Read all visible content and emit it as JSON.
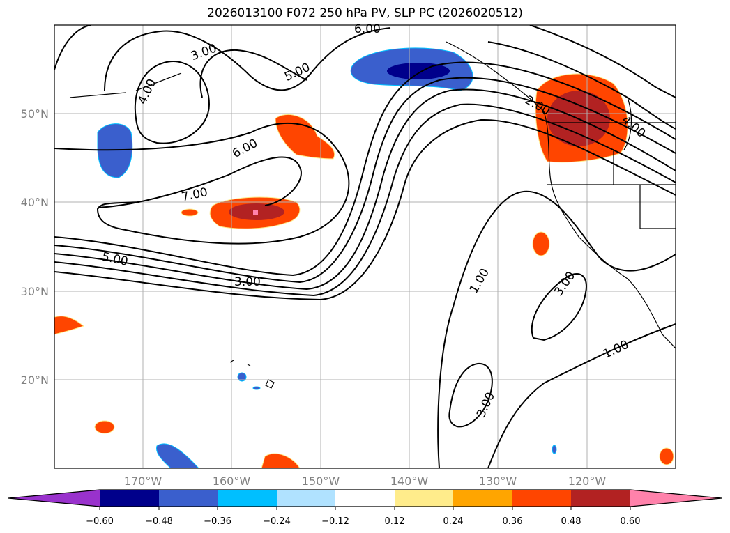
{
  "title": "2026013100 F072 250 hPa PV, SLP PC (2026020512)",
  "map": {
    "lon_labels": [
      "170°W",
      "160°W",
      "150°W",
      "140°W",
      "130°W",
      "120°W"
    ],
    "lat_labels": [
      "50°N",
      "40°N",
      "30°N",
      "20°N"
    ],
    "contour_labels": [
      "6.00",
      "3.00",
      "5.00",
      "4.00",
      "6.00",
      "7.00",
      "5.00",
      "3.00",
      "2.00",
      "4.00",
      "1.00",
      "3.00",
      "1.00",
      "3.00"
    ]
  },
  "colorbar": {
    "ticks": [
      "−0.60",
      "−0.48",
      "−0.36",
      "−0.24",
      "−0.12",
      "0.12",
      "0.24",
      "0.36",
      "0.48",
      "0.60"
    ],
    "colors": [
      "#9932CC",
      "#00008B",
      "#3A5FCD",
      "#00BFFF",
      "#B0E2FF",
      "#FFFFFF",
      "#FFEC8B",
      "#FFA500",
      "#FF4500",
      "#B22222",
      "#FF82AB"
    ]
  }
}
